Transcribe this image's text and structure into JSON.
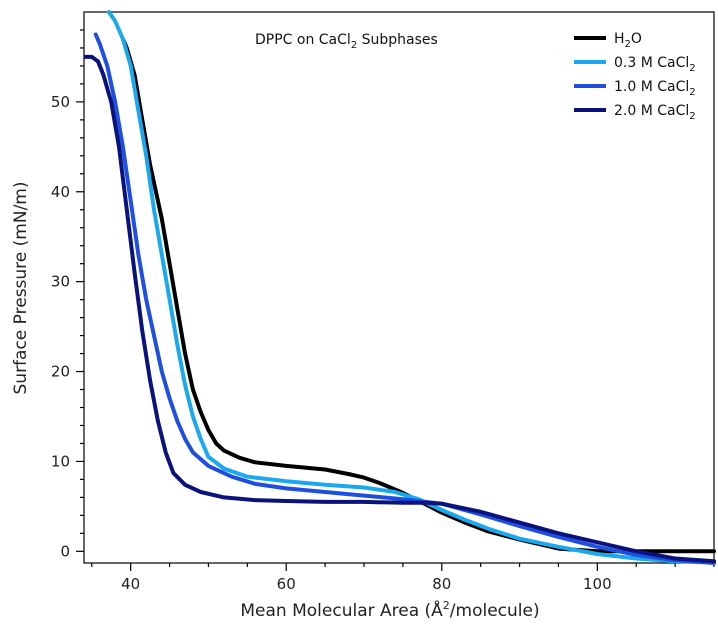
{
  "chart_data": {
    "type": "line",
    "title": "DPPC on CaCl",
    "title_sub": "2",
    "title_suffix": " Subphases",
    "xlabel": "Mean Molecular Area (Å",
    "xlabel_sup": "2",
    "xlabel_suffix": "/molecule)",
    "ylabel": "Surface Pressure (mN/m)",
    "xlim": [
      34,
      115
    ],
    "ylim": [
      -1.3,
      60
    ],
    "xticks": [
      40,
      60,
      80,
      100
    ],
    "yticks": [
      0,
      10,
      20,
      30,
      40,
      50
    ],
    "legend_position": "top-right",
    "series": [
      {
        "name": "H",
        "name_sub": "2",
        "name_suffix": "O",
        "color": "#000000",
        "points": [
          [
            39,
            57
          ],
          [
            39.5,
            56
          ],
          [
            40.5,
            53
          ],
          [
            41.5,
            48
          ],
          [
            42.5,
            43
          ],
          [
            44,
            37
          ],
          [
            45,
            32
          ],
          [
            46,
            27
          ],
          [
            47,
            22
          ],
          [
            48,
            18
          ],
          [
            49,
            15.5
          ],
          [
            50,
            13.5
          ],
          [
            51,
            12
          ],
          [
            52,
            11.2
          ],
          [
            54,
            10.4
          ],
          [
            56,
            9.9
          ],
          [
            60,
            9.5
          ],
          [
            65,
            9.1
          ],
          [
            68,
            8.6
          ],
          [
            70,
            8.2
          ],
          [
            72,
            7.6
          ],
          [
            75,
            6.5
          ],
          [
            78,
            5.2
          ],
          [
            80,
            4.3
          ],
          [
            83,
            3.2
          ],
          [
            86,
            2.2
          ],
          [
            90,
            1.3
          ],
          [
            95,
            0.3
          ],
          [
            100,
            0
          ],
          [
            115,
            0
          ]
        ]
      },
      {
        "name": "0.3 M CaCl",
        "name_sub": "2",
        "name_suffix": "",
        "color": "#1aa8ee",
        "points": [
          [
            37.2,
            60
          ],
          [
            38,
            59
          ],
          [
            39,
            57
          ],
          [
            40,
            54
          ],
          [
            41,
            49
          ],
          [
            42,
            44
          ],
          [
            43,
            38
          ],
          [
            44,
            33
          ],
          [
            45,
            28
          ],
          [
            46,
            23
          ],
          [
            47,
            18.5
          ],
          [
            48,
            15
          ],
          [
            49,
            12.5
          ],
          [
            50,
            10.5
          ],
          [
            52,
            9.2
          ],
          [
            55,
            8.3
          ],
          [
            60,
            7.8
          ],
          [
            65,
            7.4
          ],
          [
            70,
            7.1
          ],
          [
            74,
            6.6
          ],
          [
            77,
            5.8
          ],
          [
            80,
            4.6
          ],
          [
            83,
            3.5
          ],
          [
            86,
            2.5
          ],
          [
            90,
            1.4
          ],
          [
            95,
            0.5
          ],
          [
            100,
            -0.3
          ],
          [
            105,
            -0.8
          ],
          [
            110,
            -1.1
          ],
          [
            115,
            -1.2
          ]
        ]
      },
      {
        "name": "1.0 M CaCl",
        "name_sub": "2",
        "name_suffix": "",
        "color": "#1f4fe0",
        "points": [
          [
            35.5,
            57.5
          ],
          [
            36,
            56.5
          ],
          [
            37,
            54
          ],
          [
            38,
            50
          ],
          [
            39,
            45
          ],
          [
            40,
            39
          ],
          [
            41,
            33
          ],
          [
            42,
            28
          ],
          [
            43,
            24
          ],
          [
            44,
            20
          ],
          [
            45,
            17
          ],
          [
            46,
            14.5
          ],
          [
            47,
            12.5
          ],
          [
            48,
            11
          ],
          [
            50,
            9.5
          ],
          [
            53,
            8.3
          ],
          [
            56,
            7.5
          ],
          [
            60,
            7
          ],
          [
            65,
            6.6
          ],
          [
            70,
            6.2
          ],
          [
            75,
            5.8
          ],
          [
            80,
            5.3
          ],
          [
            85,
            4.1
          ],
          [
            90,
            2.8
          ],
          [
            95,
            1.6
          ],
          [
            100,
            0.5
          ],
          [
            105,
            -0.4
          ],
          [
            110,
            -1
          ],
          [
            115,
            -1.3
          ]
        ]
      },
      {
        "name": "2.0 M CaCl",
        "name_sub": "2",
        "name_suffix": "",
        "color": "#0a127c",
        "points": [
          [
            34.2,
            55
          ],
          [
            35,
            55
          ],
          [
            35.8,
            54.5
          ],
          [
            36.5,
            53
          ],
          [
            37.5,
            50
          ],
          [
            38.5,
            45
          ],
          [
            39.5,
            38
          ],
          [
            40.5,
            31
          ],
          [
            41.5,
            24.5
          ],
          [
            42.5,
            19
          ],
          [
            43.5,
            14.5
          ],
          [
            44.5,
            11
          ],
          [
            45.5,
            8.7
          ],
          [
            47,
            7.4
          ],
          [
            49,
            6.6
          ],
          [
            52,
            6
          ],
          [
            56,
            5.7
          ],
          [
            60,
            5.6
          ],
          [
            65,
            5.5
          ],
          [
            70,
            5.5
          ],
          [
            75,
            5.4
          ],
          [
            78,
            5.4
          ],
          [
            80,
            5.3
          ],
          [
            85,
            4.4
          ],
          [
            90,
            3.2
          ],
          [
            95,
            2
          ],
          [
            100,
            1
          ],
          [
            105,
            0
          ],
          [
            110,
            -0.8
          ],
          [
            115,
            -1.1
          ]
        ]
      }
    ]
  }
}
